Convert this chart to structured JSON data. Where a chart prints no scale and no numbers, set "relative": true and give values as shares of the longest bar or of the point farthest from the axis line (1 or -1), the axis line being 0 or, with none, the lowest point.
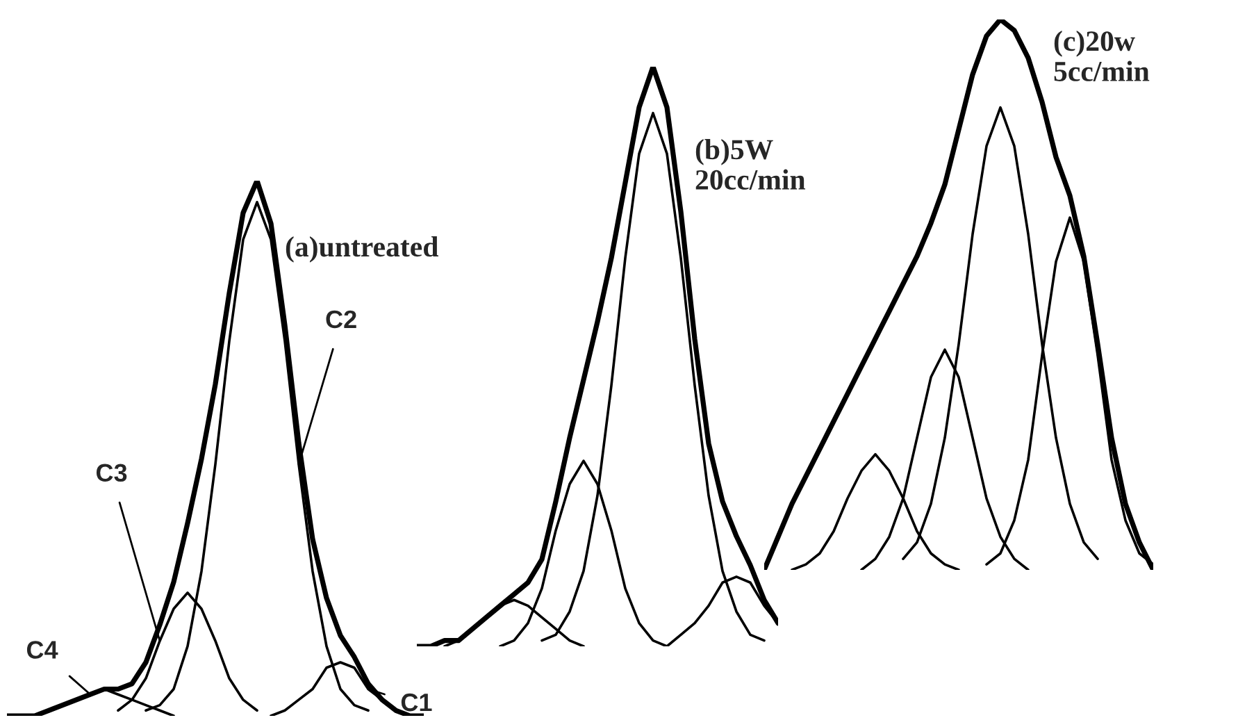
{
  "chart_data": [
    {
      "type": "line",
      "relative": true,
      "title": "(a)untreated",
      "categories": [
        null,
        null,
        null,
        null,
        null,
        null,
        null,
        null,
        null,
        null,
        null,
        null,
        null,
        null,
        null,
        null,
        null,
        null,
        null,
        null,
        null,
        null,
        null,
        null,
        null,
        null,
        null,
        null,
        null,
        null,
        null
      ],
      "series": [
        {
          "color": "#000000",
          "values": [
            0.0,
            0.0,
            0.0,
            0.01,
            0.02,
            0.03,
            0.04,
            0.05,
            0.05,
            0.06,
            0.1,
            0.17,
            0.25,
            0.36,
            0.48,
            0.62,
            0.79,
            0.94,
            1.0,
            0.92,
            0.73,
            0.51,
            0.33,
            0.22,
            0.15,
            0.11,
            0.06,
            0.03,
            0.01,
            0.0,
            0.0
          ]
        },
        {
          "name": "C2",
          "color": "#000000",
          "values": [
            null,
            null,
            null,
            null,
            null,
            null,
            null,
            null,
            null,
            null,
            0.01,
            0.02,
            0.05,
            0.13,
            0.27,
            0.47,
            0.7,
            0.89,
            0.96,
            0.89,
            0.7,
            0.47,
            0.27,
            0.13,
            0.05,
            0.02,
            0.01,
            null,
            null,
            null,
            null
          ]
        },
        {
          "name": "C3",
          "color": "#000000",
          "values": [
            null,
            null,
            null,
            null,
            null,
            null,
            null,
            null,
            0.01,
            0.03,
            0.07,
            0.14,
            0.2,
            0.23,
            0.2,
            0.14,
            0.07,
            0.03,
            0.01,
            null,
            null,
            null,
            null,
            null,
            null,
            null,
            null,
            null,
            null,
            null,
            null
          ]
        },
        {
          "name": "C4",
          "color": "#000000",
          "values": [
            null,
            0.0,
            0.0,
            0.01,
            0.02,
            0.03,
            0.04,
            0.05,
            0.04,
            0.03,
            0.02,
            0.01,
            0.0,
            null,
            null,
            null,
            null,
            null,
            null,
            null,
            null,
            null,
            null,
            null,
            null,
            null,
            null,
            null,
            null,
            null,
            null
          ]
        },
        {
          "name": "C1",
          "color": "#000000",
          "values": [
            null,
            null,
            null,
            null,
            null,
            null,
            null,
            null,
            null,
            null,
            null,
            null,
            null,
            null,
            null,
            null,
            null,
            null,
            null,
            0.0,
            0.01,
            0.03,
            0.05,
            0.09,
            0.1,
            0.09,
            0.05,
            0.03,
            0.01,
            0.0,
            null
          ]
        }
      ]
    },
    {
      "type": "line",
      "relative": true,
      "title": "(b)5W\n20cc/min",
      "categories": [
        null,
        null,
        null,
        null,
        null,
        null,
        null,
        null,
        null,
        null,
        null,
        null,
        null,
        null,
        null,
        null,
        null,
        null,
        null,
        null,
        null,
        null,
        null,
        null,
        null,
        null,
        null
      ],
      "series": [
        {
          "color": "#000000",
          "values": [
            0.0,
            0.0,
            0.01,
            0.01,
            0.03,
            0.05,
            0.07,
            0.09,
            0.11,
            0.15,
            0.25,
            0.36,
            0.46,
            0.56,
            0.67,
            0.8,
            0.93,
            1.0,
            0.93,
            0.75,
            0.53,
            0.35,
            0.25,
            0.19,
            0.14,
            0.08,
            0.04
          ]
        },
        {
          "color": "#000000",
          "values": [
            null,
            null,
            0.0,
            0.01,
            0.03,
            0.05,
            0.07,
            0.08,
            0.07,
            0.05,
            0.03,
            0.01,
            0.0,
            null,
            null,
            null,
            null,
            null,
            null,
            null,
            null,
            null,
            null,
            null,
            null,
            null,
            null
          ]
        },
        {
          "color": "#000000",
          "values": [
            null,
            null,
            null,
            null,
            null,
            null,
            0.0,
            0.01,
            0.04,
            0.1,
            0.2,
            0.28,
            0.32,
            0.28,
            0.2,
            0.1,
            0.04,
            0.01,
            0.0,
            null,
            null,
            null,
            null,
            null,
            null,
            null,
            null
          ]
        },
        {
          "color": "#000000",
          "values": [
            null,
            null,
            null,
            null,
            null,
            null,
            null,
            null,
            null,
            0.01,
            0.02,
            0.06,
            0.13,
            0.26,
            0.45,
            0.67,
            0.85,
            0.92,
            0.85,
            0.67,
            0.45,
            0.26,
            0.13,
            0.06,
            0.02,
            0.01,
            null
          ]
        },
        {
          "color": "#000000",
          "values": [
            null,
            null,
            null,
            null,
            null,
            null,
            null,
            null,
            null,
            null,
            null,
            null,
            null,
            null,
            null,
            null,
            null,
            null,
            0.0,
            0.02,
            0.04,
            0.07,
            0.11,
            0.12,
            0.11,
            0.07,
            0.04
          ]
        }
      ]
    },
    {
      "type": "line",
      "relative": true,
      "title": "(c)20w\n5cc/min",
      "categories": [
        null,
        null,
        null,
        null,
        null,
        null,
        null,
        null,
        null,
        null,
        null,
        null,
        null,
        null,
        null,
        null,
        null,
        null,
        null,
        null,
        null,
        null,
        null,
        null,
        null,
        null,
        null,
        null,
        null
      ],
      "series": [
        {
          "color": "#000000",
          "values": [
            0.0,
            0.06,
            0.12,
            0.17,
            0.22,
            0.27,
            0.32,
            0.37,
            0.42,
            0.47,
            0.52,
            0.57,
            0.63,
            0.7,
            0.8,
            0.9,
            0.97,
            1.0,
            0.98,
            0.93,
            0.85,
            0.75,
            0.68,
            0.57,
            0.41,
            0.24,
            0.12,
            0.05,
            0.0
          ]
        },
        {
          "color": "#000000",
          "values": [
            null,
            null,
            0.0,
            0.01,
            0.03,
            0.07,
            0.13,
            0.18,
            0.21,
            0.18,
            0.13,
            0.07,
            0.03,
            0.01,
            0.0,
            null,
            null,
            null,
            null,
            null,
            null,
            null,
            null,
            null,
            null,
            null,
            null,
            null,
            null
          ]
        },
        {
          "color": "#000000",
          "values": [
            null,
            null,
            null,
            null,
            null,
            null,
            null,
            0.0,
            0.02,
            0.06,
            0.13,
            0.24,
            0.35,
            0.4,
            0.35,
            0.24,
            0.13,
            0.06,
            0.02,
            0.0,
            null,
            null,
            null,
            null,
            null,
            null,
            null,
            null,
            null
          ]
        },
        {
          "color": "#000000",
          "values": [
            null,
            null,
            null,
            null,
            null,
            null,
            null,
            null,
            null,
            null,
            0.02,
            0.05,
            0.12,
            0.24,
            0.41,
            0.61,
            0.77,
            0.84,
            0.77,
            0.61,
            0.41,
            0.24,
            0.12,
            0.05,
            0.02,
            null,
            null,
            null,
            null
          ]
        },
        {
          "color": "#000000",
          "values": [
            null,
            null,
            null,
            null,
            null,
            null,
            null,
            null,
            null,
            null,
            null,
            null,
            null,
            null,
            null,
            null,
            0.01,
            0.03,
            0.09,
            0.2,
            0.39,
            0.56,
            0.64,
            0.56,
            0.39,
            0.2,
            0.09,
            0.03,
            0.01
          ]
        }
      ]
    }
  ]
}
